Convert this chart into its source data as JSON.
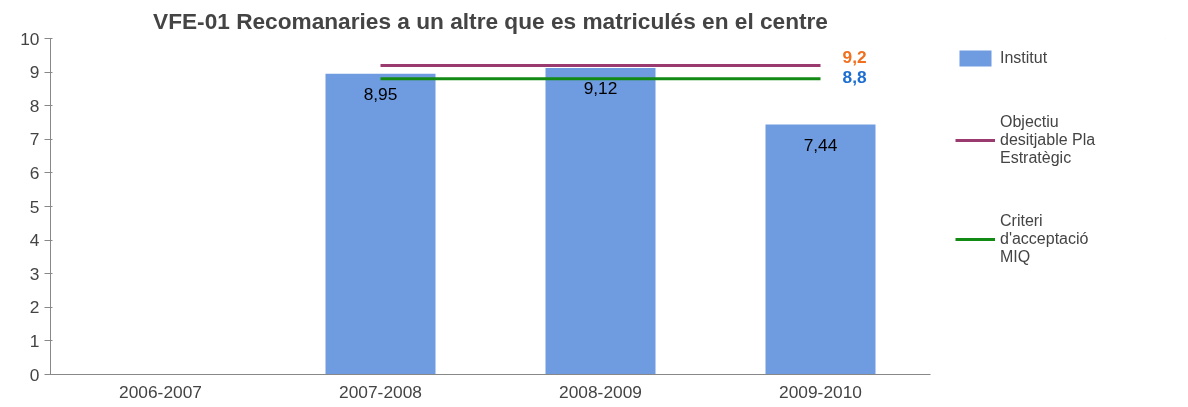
{
  "chart_data": {
    "type": "bar",
    "title": "VFE-01 Recomanaries a un altre que es matriculés en el centre",
    "categories": [
      "2006-2007",
      "2007-2008",
      "2008-2009",
      "2009-2010"
    ],
    "series": [
      {
        "name": "Institut",
        "color": "#6f9be0",
        "values": [
          null,
          8.95,
          9.12,
          7.44
        ],
        "value_labels": [
          null,
          "8,95",
          "9,12",
          "7,44"
        ]
      },
      {
        "name": "Objectiu desitjable Pla Estratègic",
        "type": "line",
        "color": "#9b3a6e",
        "values": [
          null,
          9.2,
          9.2,
          9.2
        ],
        "value_labels": [
          null,
          null,
          null,
          "9,2"
        ]
      },
      {
        "name": "Criteri d'acceptació MIQ",
        "type": "line",
        "color": "#138a13",
        "values": [
          null,
          8.8,
          8.8,
          8.8
        ],
        "value_labels": [
          null,
          null,
          null,
          "8,8"
        ]
      }
    ],
    "ylim": [
      0,
      10
    ],
    "yticks": [
      0,
      1,
      2,
      3,
      4,
      5,
      6,
      7,
      8,
      9,
      10
    ],
    "grid": false,
    "legend": "right"
  }
}
